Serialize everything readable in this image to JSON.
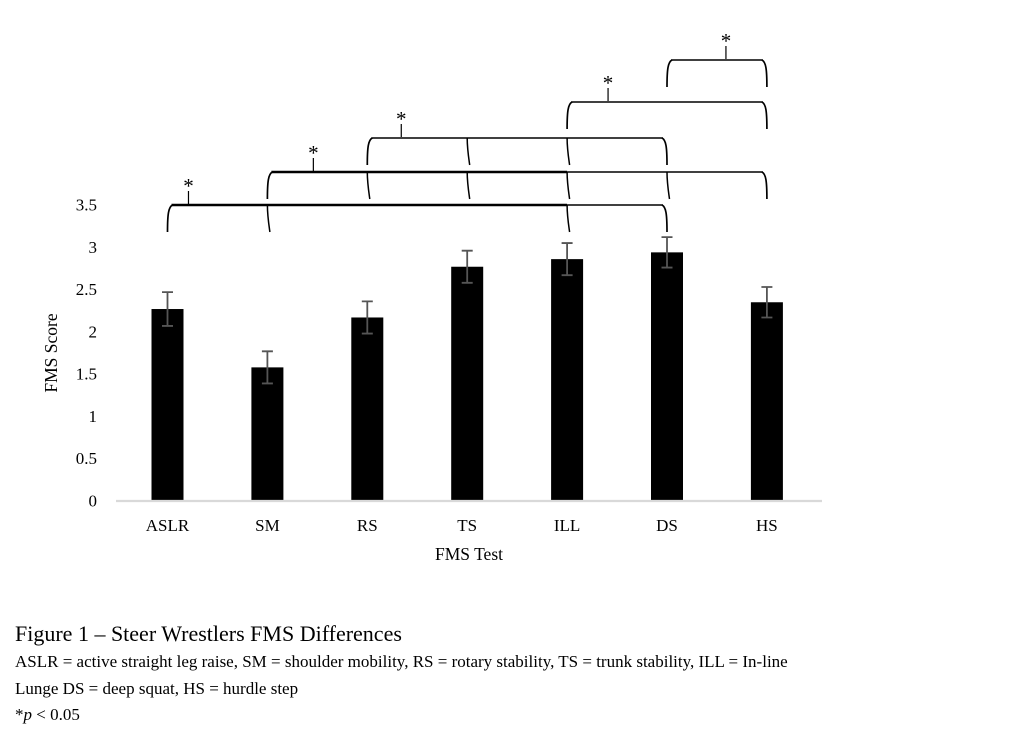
{
  "figure": {
    "title": "Figure 1 – Steer Wrestlers FMS Differences",
    "note_line1": "ASLR = active straight leg raise, SM = shoulder mobility, RS = rotary stability, TS = trunk stability, ILL = In-line",
    "note_line2": "Lunge DS = deep squat, HS = hurdle step",
    "p_star": "*",
    "p_symbol": "p",
    "p_rest": " < 0.05"
  },
  "chart_data": {
    "type": "bar",
    "title": "",
    "xlabel": "FMS Test",
    "ylabel": "FMS Score",
    "categories": [
      "ASLR",
      "SM",
      "RS",
      "TS",
      "ILL",
      "DS",
      "HS"
    ],
    "values": [
      2.27,
      1.58,
      2.17,
      2.77,
      2.86,
      2.94,
      2.35
    ],
    "errors": [
      0.2,
      0.19,
      0.19,
      0.19,
      0.19,
      0.18,
      0.18
    ],
    "ylim": [
      0,
      3.5
    ],
    "ytick_values": [
      0,
      0.5,
      1,
      1.5,
      2,
      2.5,
      3,
      3.5
    ],
    "ytick_labels": [
      "0",
      "0.5",
      "1",
      "1.5",
      "2",
      "2.5",
      "3",
      "3.5"
    ],
    "grid": false,
    "legend": false,
    "bar_color": "#000000",
    "error_bar_color": "#555555",
    "axis_line_color": "#d9d9d9",
    "significance_brackets": [
      {
        "from": "ASLR",
        "to": "DS",
        "ticks": [
          "SM",
          "ILL"
        ],
        "thick_to": "ILL",
        "star_pos": 0.21,
        "label": "*"
      },
      {
        "from": "SM",
        "to": "HS",
        "ticks": [
          "RS",
          "TS",
          "ILL",
          "DS"
        ],
        "thick_to": "ILL",
        "star_pos": 1.46,
        "label": "*"
      },
      {
        "from": "RS",
        "to": "DS",
        "ticks": [
          "TS",
          "ILL"
        ],
        "star_pos": 2.34,
        "label": "*"
      },
      {
        "from": "ILL",
        "to": "HS",
        "ticks": [],
        "star_pos": 4.41,
        "label": "*"
      },
      {
        "from": "DS",
        "to": "HS",
        "ticks": [],
        "star_pos": 5.59,
        "label": "*"
      }
    ]
  }
}
